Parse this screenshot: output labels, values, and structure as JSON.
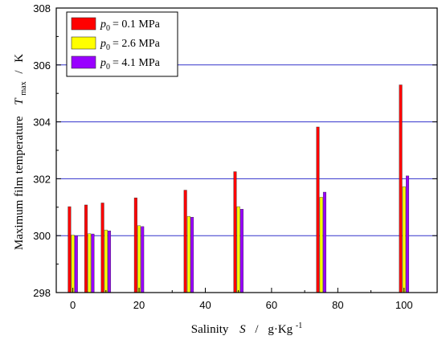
{
  "chart_data": {
    "type": "bar",
    "title": "",
    "xlabel": {
      "name": "Salinity",
      "symbol": "S",
      "unit": "g·Kg",
      "unit_exp": "-1"
    },
    "ylabel": {
      "name": "Maximum film temperature",
      "symbol": "T",
      "subscript": "max",
      "unit": "K"
    },
    "xlim": [
      -5,
      110
    ],
    "ylim": [
      298,
      308
    ],
    "x_ticks": [
      0,
      20,
      40,
      60,
      80,
      100
    ],
    "y_ticks": [
      298,
      300,
      302,
      304,
      306,
      308
    ],
    "grid_y": [
      300,
      302,
      304,
      306
    ],
    "legend_position": "top-left",
    "categories": [
      0,
      5,
      10,
      20,
      35,
      50,
      75,
      100
    ],
    "series": [
      {
        "name": "p0 = 0.1 MPa",
        "label_symbol": "p",
        "label_sub": "0",
        "label_value": "= 0.1 MPa",
        "color": "#ff0000",
        "values": [
          301.02,
          301.08,
          301.15,
          301.33,
          301.6,
          302.25,
          303.82,
          305.3
        ]
      },
      {
        "name": "p0 = 2.6 MPa",
        "label_symbol": "p",
        "label_sub": "0",
        "label_value": "= 2.6 MPa",
        "color": "#ffff00",
        "values": [
          300.02,
          300.07,
          300.2,
          300.35,
          300.68,
          301.02,
          301.35,
          301.72
        ]
      },
      {
        "name": "p0 = 4.1 MPa",
        "label_symbol": "p",
        "label_sub": "0",
        "label_value": "= 4.1 MPa",
        "color": "#9900ff",
        "values": [
          300.0,
          300.06,
          300.17,
          300.32,
          300.65,
          300.93,
          301.53,
          302.1
        ]
      }
    ]
  }
}
